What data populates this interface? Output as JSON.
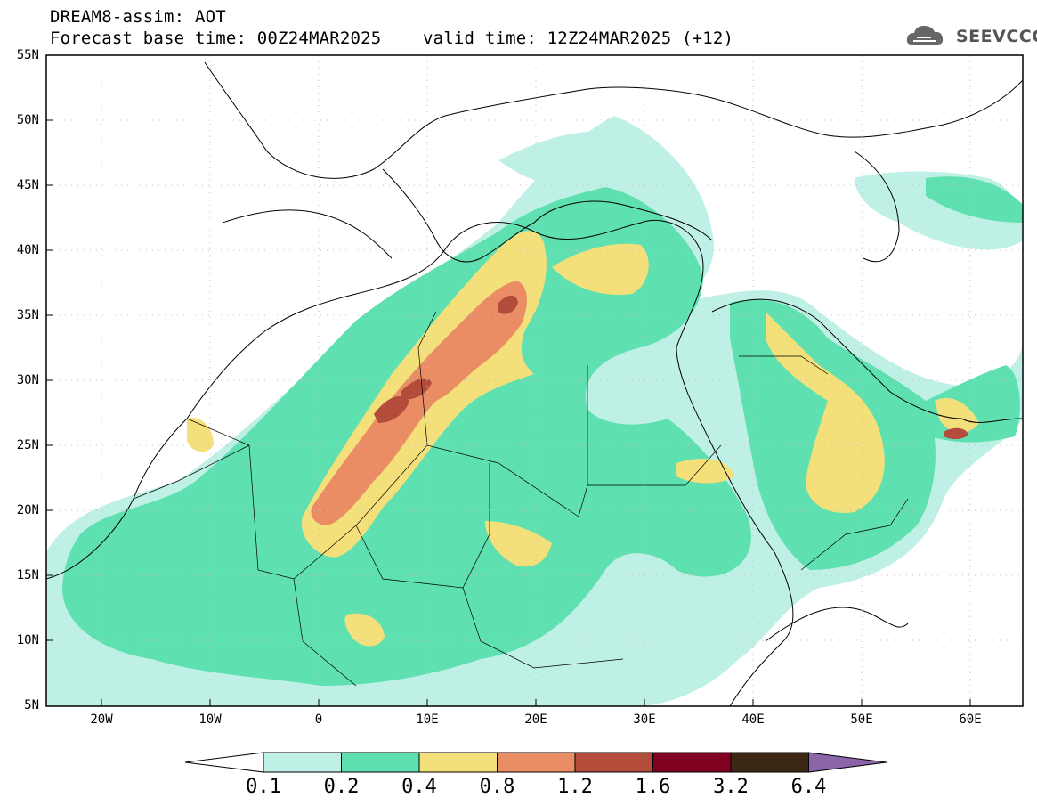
{
  "header": {
    "title": "DREAM8-assim: AOT",
    "subtitle": "Forecast base time: 00Z24MAR2025    valid time: 12Z24MAR2025 (+12)",
    "logo_text": "SEEVCCC"
  },
  "map": {
    "variable": "AOT",
    "lat_ticks": [
      "55N",
      "50N",
      "45N",
      "40N",
      "35N",
      "30N",
      "25N",
      "20N",
      "15N",
      "10N",
      "5N"
    ],
    "lon_ticks": [
      "20W",
      "10W",
      "0",
      "10E",
      "20E",
      "30E",
      "40E",
      "50E",
      "60E"
    ],
    "grid": true,
    "projection": "lat-lon"
  },
  "colorbar": {
    "labels": [
      "0.1",
      "0.2",
      "0.4",
      "0.8",
      "1.2",
      "1.6",
      "3.2",
      "6.4"
    ],
    "colors": [
      "#ffffff",
      "#bff0e6",
      "#5ee0b0",
      "#f4e07a",
      "#ea8c64",
      "#b44c3c",
      "#800020",
      "#3c2814",
      "#8c64aa"
    ]
  },
  "colors": {
    "c1": "#bff0e6",
    "c2": "#5ee0b0",
    "c3": "#f4e07a",
    "c4": "#ea8c64",
    "c5": "#b44c3c",
    "border": "#000000"
  }
}
